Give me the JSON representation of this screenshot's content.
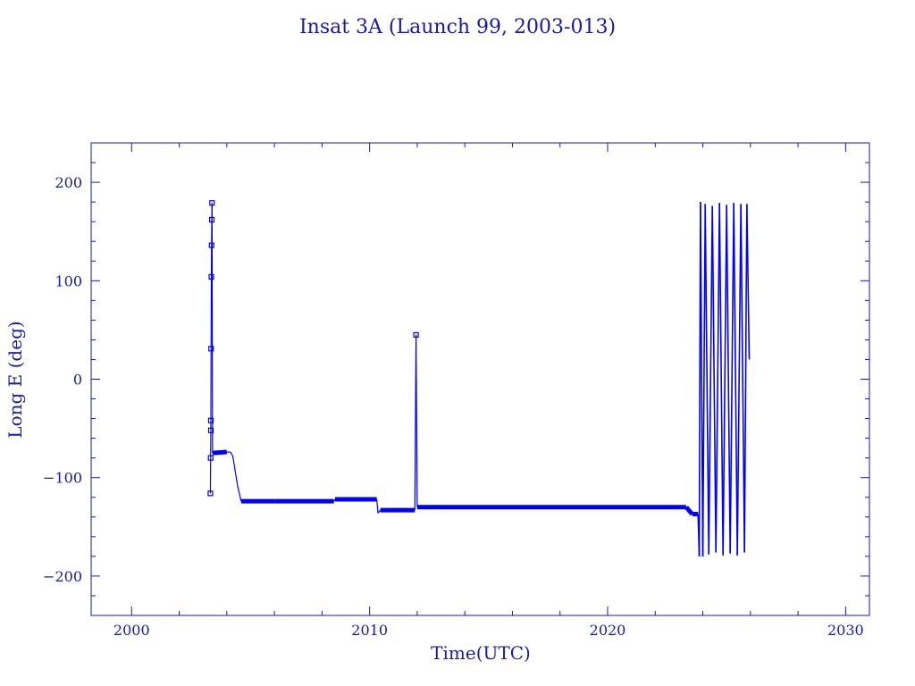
{
  "chart_data": {
    "type": "line",
    "title": "Insat 3A (Launch 99, 2003-013)",
    "xlabel": "Time(UTC)",
    "ylabel": "Long E (deg)",
    "xlim": [
      1998.3,
      2031.0
    ],
    "ylim": [
      -240,
      240
    ],
    "x_ticks": [
      2000,
      2010,
      2020,
      2030
    ],
    "x_tick_labels": [
      "2000",
      "2010",
      "2020",
      "2030"
    ],
    "y_ticks": [
      -200,
      -100,
      0,
      100,
      200
    ],
    "y_tick_labels": [
      "−200",
      "−100",
      "0",
      "100",
      "200"
    ],
    "grid": false,
    "colors": {
      "series": "#0000ff",
      "axes": "#1a1aa6"
    },
    "series": [
      {
        "points": [
          [
            2003.31,
            -116
          ],
          [
            2003.32,
            -80
          ],
          [
            2003.33,
            -52
          ],
          [
            2003.33,
            -42
          ],
          [
            2003.34,
            31
          ],
          [
            2003.35,
            104
          ],
          [
            2003.36,
            136
          ],
          [
            2003.37,
            162
          ],
          [
            2003.38,
            179
          ],
          [
            2003.4,
            -75
          ],
          [
            2004.0,
            -74
          ],
          [
            2004.15,
            -74
          ],
          [
            2004.25,
            -78
          ],
          [
            2004.45,
            -108
          ],
          [
            2004.6,
            -124
          ],
          [
            2006.0,
            -124
          ],
          [
            2008.5,
            -124
          ],
          [
            2008.55,
            -122
          ],
          [
            2010.3,
            -122
          ],
          [
            2010.35,
            -136
          ],
          [
            2010.45,
            -133
          ],
          [
            2011.9,
            -133
          ],
          [
            2011.95,
            45
          ],
          [
            2012.0,
            -130
          ],
          [
            2023.3,
            -130
          ],
          [
            2023.55,
            -137
          ],
          [
            2023.8,
            -137
          ],
          [
            2023.85,
            -180
          ],
          [
            2023.9,
            180
          ],
          [
            2024.0,
            -180
          ],
          [
            2024.1,
            178
          ],
          [
            2024.25,
            -178
          ],
          [
            2024.4,
            176
          ],
          [
            2024.55,
            -176
          ],
          [
            2024.7,
            179
          ],
          [
            2024.85,
            -179
          ],
          [
            2025.0,
            177
          ],
          [
            2025.15,
            -177
          ],
          [
            2025.3,
            179
          ],
          [
            2025.45,
            -179
          ],
          [
            2025.6,
            178
          ],
          [
            2025.75,
            -176
          ],
          [
            2025.85,
            178
          ],
          [
            2025.95,
            20
          ]
        ],
        "marker_points": [
          [
            2003.31,
            -116
          ],
          [
            2003.32,
            -80
          ],
          [
            2003.33,
            -52
          ],
          [
            2003.33,
            -42
          ],
          [
            2003.34,
            31
          ],
          [
            2003.35,
            104
          ],
          [
            2003.36,
            136
          ],
          [
            2003.37,
            162
          ],
          [
            2003.38,
            179
          ],
          [
            2011.95,
            45
          ]
        ]
      }
    ]
  }
}
